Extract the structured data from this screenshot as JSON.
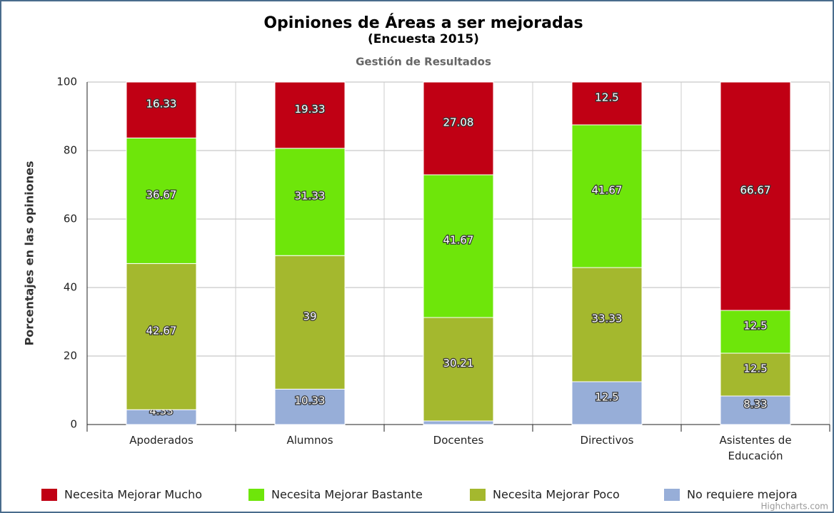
{
  "chart_data": {
    "type": "stacked_bar",
    "title": "Opiniones de Áreas a ser mejoradas",
    "subtitle": "(Encuesta 2015)",
    "caption": "Gestión de Resultados",
    "y_axis_label": "Porcentajes en las opiniones",
    "credits": "Highcharts.com",
    "categories": [
      "Apoderados",
      "Alumnos",
      "Docentes",
      "Directivos",
      "Asistentes de Educación"
    ],
    "series": [
      {
        "name": "Necesita Mejorar Mucho",
        "color": "#c00014",
        "values": [
          16.33,
          19.33,
          27.08,
          12.5,
          66.67
        ]
      },
      {
        "name": "Necesita Mejorar Bastante",
        "color": "#6ee60a",
        "values": [
          36.67,
          31.33,
          41.67,
          41.67,
          12.5
        ]
      },
      {
        "name": "Necesita Mejorar Poco",
        "color": "#a4b82e",
        "values": [
          42.67,
          39,
          30.21,
          33.33,
          12.5
        ]
      },
      {
        "name": "No requiere mejora",
        "color": "#97aed8",
        "values": [
          4.33,
          10.33,
          1.04,
          12.5,
          8.33
        ]
      }
    ],
    "ylim": [
      0,
      100
    ],
    "yticks": [
      0,
      20,
      40,
      60,
      80,
      100
    ],
    "grid": true,
    "legend": "bottom"
  }
}
